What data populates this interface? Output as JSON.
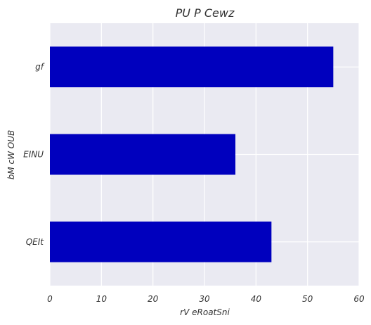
{
  "chart_data": {
    "type": "bar",
    "orientation": "horizontal",
    "title": "PU P Cewz",
    "xlabel": "rV eRoatSni",
    "ylabel": "bM cW OUB",
    "categories": [
      "gf",
      "EINU",
      "QEIt"
    ],
    "values": [
      55,
      36,
      43
    ],
    "xlim": [
      0,
      60
    ],
    "xticks": [
      0,
      10,
      20,
      30,
      40,
      50,
      60
    ],
    "grid": true,
    "legend": "none",
    "colors": {
      "bar": "#0000BE",
      "plot_background": "#EAEAF2",
      "grid": "#FFFFFF"
    }
  }
}
